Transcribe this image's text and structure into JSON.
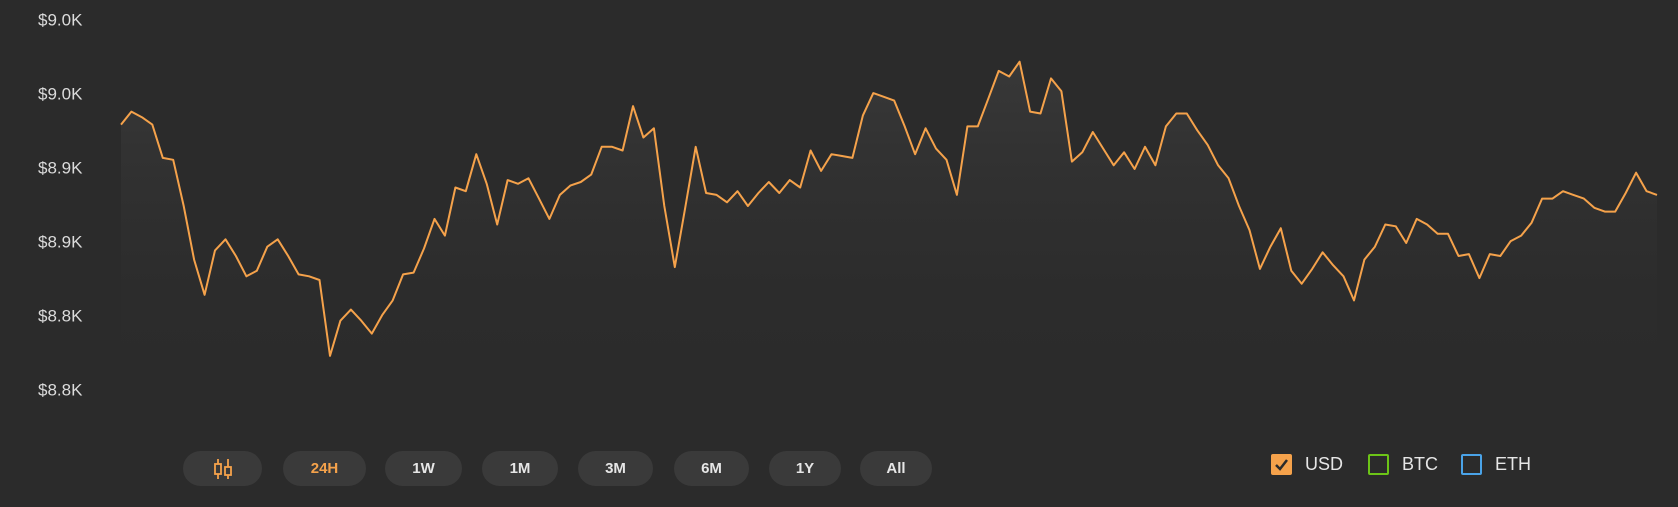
{
  "chart_data": {
    "type": "line",
    "series": [
      {
        "name": "USD",
        "color": "#f5a24b",
        "values": [
          8944,
          8951,
          8948,
          8944,
          8926,
          8925,
          8900,
          8871,
          8852,
          8876,
          8882,
          8873,
          8862,
          8865,
          8878,
          8882,
          8873,
          8863,
          8862,
          8860,
          8819,
          8838,
          8844,
          8838,
          8831,
          8841,
          8849,
          8863,
          8864,
          8877,
          8893,
          8884,
          8910,
          8908,
          8928,
          8912,
          8890,
          8914,
          8912,
          8915,
          8904,
          8893,
          8906,
          8911,
          8913,
          8917,
          8932,
          8932,
          8930,
          8954,
          8937,
          8942,
          8900,
          8867,
          8899,
          8932,
          8907,
          8906,
          8902,
          8908,
          8900,
          8907,
          8913,
          8907,
          8914,
          8910,
          8930,
          8919,
          8928,
          8927,
          8926,
          8949,
          8961,
          8959,
          8957,
          8943,
          8928,
          8942,
          8931,
          8925,
          8906,
          8943,
          8943,
          8958,
          8973,
          8970,
          8978,
          8951,
          8950,
          8969,
          8962,
          8924,
          8929,
          8940,
          8931,
          8922,
          8929,
          8920,
          8932,
          8922,
          8943,
          8950,
          8950,
          8941,
          8933,
          8922,
          8915,
          8900,
          8887,
          8866,
          8878,
          8888,
          8865,
          8858,
          8866,
          8875,
          8868,
          8862,
          8849,
          8871,
          8878,
          8890,
          8889,
          8880,
          8893,
          8890,
          8885,
          8885,
          8873,
          8874,
          8861,
          8874,
          8873,
          8881,
          8884,
          8891,
          8904,
          8904,
          8908,
          8906,
          8904,
          8899,
          8897,
          8897,
          8907,
          8918,
          8908,
          8906
        ]
      }
    ],
    "other_series": [
      {
        "name": "BTC",
        "color": "#6cc417"
      },
      {
        "name": "ETH",
        "color": "#4aa3e8"
      }
    ],
    "ylim": [
      8800,
      9000
    ],
    "yticks": [
      {
        "value": 8800,
        "label": "$8.8K"
      },
      {
        "value": 8840,
        "label": "$8.8K"
      },
      {
        "value": 8880,
        "label": "$8.9K"
      },
      {
        "value": 8920,
        "label": "$8.9K"
      },
      {
        "value": 8960,
        "label": "$9.0K"
      },
      {
        "value": 9000,
        "label": "$9.0K"
      }
    ],
    "ranges": [
      "24H",
      "1W",
      "1M",
      "3M",
      "6M",
      "1Y",
      "All"
    ]
  }
}
